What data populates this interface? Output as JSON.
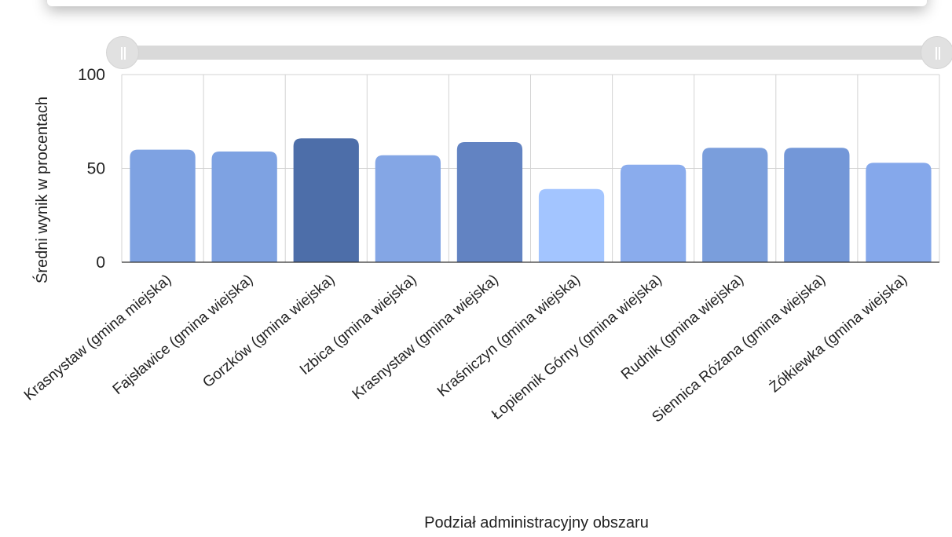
{
  "chart_data": {
    "type": "bar",
    "title": "",
    "xlabel": "Podział administracyjny obszaru",
    "ylabel": "Średni wynik w procentach",
    "ylim": [
      0,
      100
    ],
    "yticks": [
      "0",
      "50",
      "100"
    ],
    "grid": true,
    "categories": [
      "Krasnystaw (gmina miejska)",
      "Fajsławice (gmina wiejska)",
      "Gorzków (gmina wiejska)",
      "Izbica (gmina wiejska)",
      "Krasnystaw (gmina wiejska)",
      "Kraśniczyn (gmina wiejska)",
      "Łopiennik Górny (gmina wiejska)",
      "Rudnik (gmina wiejska)",
      "Siennica Różana (gmina wiejska)",
      "Żółkiewka (gmina wiejska)"
    ],
    "values": [
      60,
      59,
      66,
      57,
      64,
      39,
      52,
      61,
      61,
      53
    ],
    "colors": [
      "#7ea2e2",
      "#7ea2e2",
      "#4d6ea9",
      "#84a6e5",
      "#6283c2",
      "#a3c5ff",
      "#8aaced",
      "#7a9edc",
      "#7397d8",
      "#85a8eb"
    ]
  },
  "range_slider": {
    "left_handle": "range-left-handle",
    "right_handle": "range-right-handle"
  }
}
